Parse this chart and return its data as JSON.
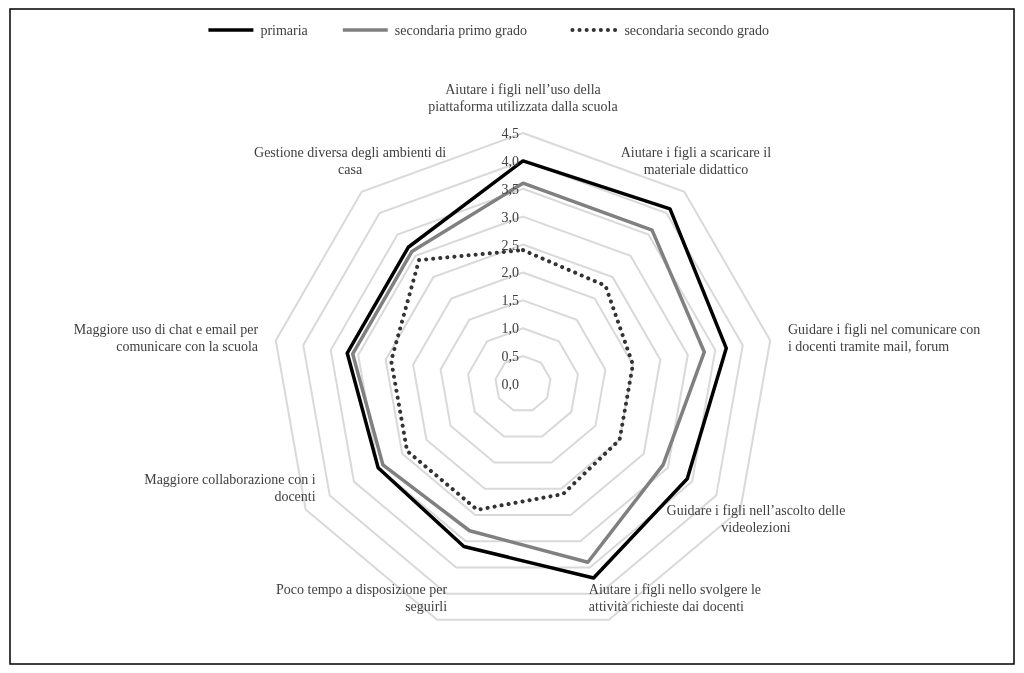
{
  "chart_data": {
    "type": "radar",
    "categories": [
      "Aiutare i figli  nell’uso della\npiattaforma utilizzata dalla scuola",
      "Aiutare i figli a scaricare il\nmateriale didattico",
      "Guidare i figli nel comunicare con\ni docenti tramite mail, forum",
      "Guidare i figli nell’ascolto delle\nvideolezioni",
      "Aiutare i figli nello svolgere le\nattività richieste dai docenti",
      "Poco tempo a disposizione per\nseguirli",
      "Maggiore collaborazione con i\ndocenti",
      "Maggiore uso di chat e email per\ncomunicare con la scuola",
      "Gestione diversa degli ambienti di\ncasa"
    ],
    "series": [
      {
        "name": "primaria",
        "color": "#000000",
        "line_style": "solid",
        "values": [
          4.0,
          4.1,
          3.7,
          3.4,
          3.7,
          3.1,
          3.0,
          3.2,
          3.2
        ]
      },
      {
        "name": "secondaria primo grado",
        "color": "#808080",
        "line_style": "solid",
        "values": [
          3.6,
          3.6,
          3.3,
          2.9,
          3.4,
          2.8,
          2.9,
          3.1,
          3.1
        ]
      },
      {
        "name": "secondaria secondo grado",
        "color": "#333333",
        "line_style": "dotted",
        "values": [
          2.4,
          2.3,
          2.0,
          2.0,
          2.1,
          2.4,
          2.4,
          2.4,
          2.9
        ]
      }
    ],
    "ylim": [
      0,
      4.5
    ],
    "yticks": [
      {
        "value": 0,
        "label": "0,0"
      },
      {
        "value": 0.5,
        "label": "0,5"
      },
      {
        "value": 1,
        "label": "1,0"
      },
      {
        "value": 1.5,
        "label": "1,5"
      },
      {
        "value": 2,
        "label": "2,0"
      },
      {
        "value": 2.5,
        "label": "2,5"
      },
      {
        "value": 3,
        "label": "3,0"
      },
      {
        "value": 3.5,
        "label": "3,5"
      },
      {
        "value": 4,
        "label": "4,0"
      },
      {
        "value": 4.5,
        "label": "4,5"
      }
    ],
    "grid": true,
    "legend": "top"
  }
}
